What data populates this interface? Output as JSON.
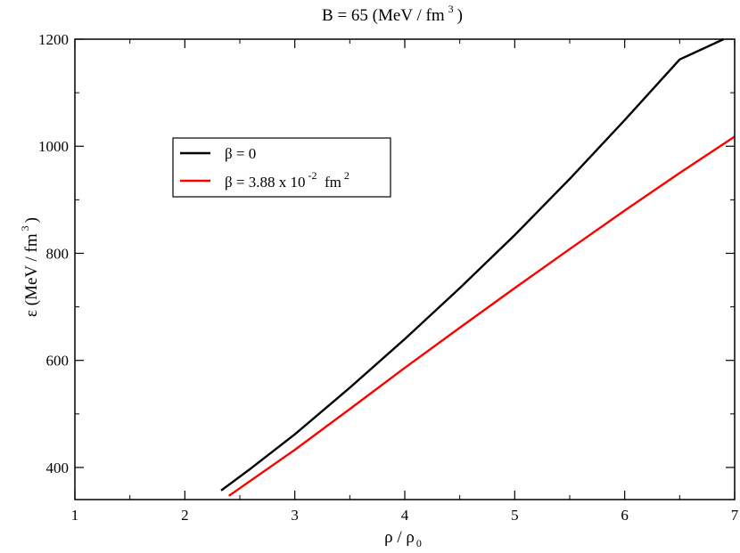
{
  "chart_data": {
    "type": "line",
    "title": {
      "main": "B = 65 (MeV / fm",
      "sup": "3",
      "close": ")"
    },
    "xlabel": {
      "main": "ρ  / ρ",
      "sub": "0"
    },
    "ylabel": {
      "main": "ε  (MeV / fm",
      "sup": "3",
      "close": ")"
    },
    "xlim": [
      1,
      7
    ],
    "ylim": [
      340,
      1200
    ],
    "xticks": [
      1,
      2,
      3,
      4,
      5,
      6,
      7
    ],
    "yticks": [
      400,
      600,
      800,
      1000,
      1200
    ],
    "grid": false,
    "legend_position": "upper-left",
    "series": [
      {
        "name": "β = 0",
        "legend_parts": {
          "main": "β = 0"
        },
        "color": "#000000",
        "x": [
          2.33,
          2.6,
          3.0,
          3.5,
          4.0,
          4.5,
          5.0,
          5.5,
          6.0,
          6.5,
          6.9
        ],
        "y": [
          357,
          398,
          462,
          549,
          640,
          735,
          834,
          939,
          1049,
          1162,
          1200
        ]
      },
      {
        "name": "β = 3.88  x 10-2  fm2",
        "legend_parts": {
          "main": "β = 3.88  x 10",
          "sup1": "-2",
          "mid": "  fm",
          "sup2": "2"
        },
        "color": "#ff0000",
        "x": [
          2.4,
          3.0,
          3.5,
          4.0,
          4.5,
          5.0,
          5.5,
          6.0,
          6.5,
          7.0
        ],
        "y": [
          347,
          433,
          509,
          586,
          661,
          735,
          808,
          880,
          950,
          1018
        ]
      }
    ]
  }
}
